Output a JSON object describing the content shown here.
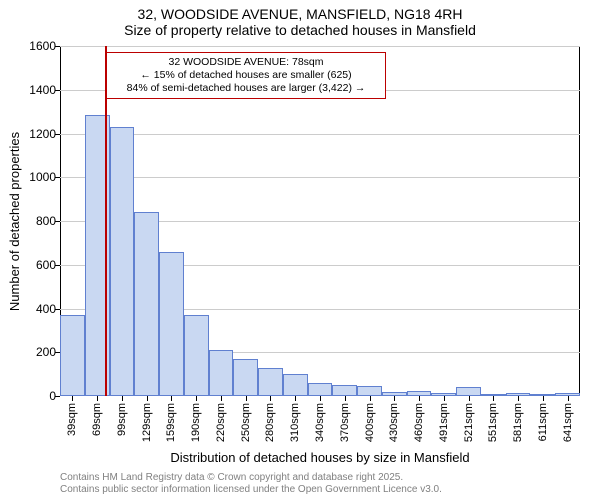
{
  "titles": {
    "line1": "32, WOODSIDE AVENUE, MANSFIELD, NG18 4RH",
    "line2": "Size of property relative to detached houses in Mansfield"
  },
  "chart": {
    "type": "histogram",
    "y": {
      "min": 0,
      "max": 1600,
      "tick_step": 200,
      "title": "Number of detached properties",
      "label_fontsize": 12,
      "title_fontsize": 13
    },
    "x": {
      "title": "Distribution of detached houses by size in Mansfield",
      "categories": [
        "39sqm",
        "69sqm",
        "99sqm",
        "129sqm",
        "159sqm",
        "190sqm",
        "220sqm",
        "250sqm",
        "280sqm",
        "310sqm",
        "340sqm",
        "370sqm",
        "400sqm",
        "430sqm",
        "460sqm",
        "491sqm",
        "521sqm",
        "551sqm",
        "581sqm",
        "611sqm",
        "641sqm"
      ],
      "label_fontsize": 11,
      "title_fontsize": 13
    },
    "bars": {
      "values": [
        370,
        1285,
        1230,
        840,
        660,
        370,
        210,
        170,
        130,
        100,
        60,
        50,
        45,
        20,
        25,
        15,
        40,
        8,
        15,
        8,
        15
      ],
      "fill_color": "#c9d8f2",
      "border_color": "#6080d0",
      "bar_gap_ratio": 0.0
    },
    "grid": {
      "color": "#cccccc"
    },
    "background_color": "#ffffff",
    "marker": {
      "position_sqm": 78,
      "line_color": "#bb0000",
      "box_border": "#bb0000",
      "box_bg": "#ffffff",
      "lines": [
        "32 WOODSIDE AVENUE: 78sqm",
        "← 15% of detached houses are smaller (625)",
        "84% of semi-detached houses are larger (3,422) →"
      ]
    }
  },
  "footnotes": {
    "line1": "Contains HM Land Registry data © Crown copyright and database right 2025.",
    "line2": "Contains public sector information licensed under the Open Government Licence v3.0."
  }
}
